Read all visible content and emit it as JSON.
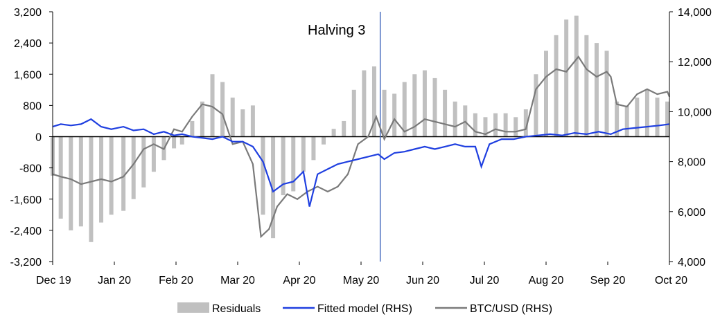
{
  "chart_data": {
    "type": "bar+line",
    "annotation": "Halving 3",
    "annotation_x": "2020-05-11",
    "x_categories": [
      "Dec 19",
      "Jan 20",
      "Feb 20",
      "Mar 20",
      "Apr 20",
      "May 20",
      "Jun 20",
      "Jul 20",
      "Aug 20",
      "Sep 20",
      "Oct 20"
    ],
    "x_range": [
      "2019-12-01",
      "2020-10-01"
    ],
    "y_left": {
      "range": [
        -3200,
        3200
      ],
      "ticks": [
        3200,
        2400,
        1600,
        800,
        0,
        -800,
        -1600,
        -2400,
        -3200
      ],
      "tick_labels": [
        "3,200",
        "2,400",
        "1,600",
        "800",
        "0",
        "-800",
        "-1,600",
        "-2,400",
        "-3,200"
      ]
    },
    "y_right": {
      "range": [
        4000,
        14000
      ],
      "ticks": [
        14000,
        12000,
        10000,
        8000,
        6000,
        4000
      ],
      "tick_labels": [
        "14,000",
        "12,000",
        "10,000",
        "8,000",
        "6,000",
        "4,000"
      ]
    },
    "legend": {
      "position": "bottom",
      "entries": [
        "Residuals",
        "Fitted model (RHS)",
        "BTC/USD (RHS)"
      ]
    },
    "colors": {
      "residuals": "#c0c0c0",
      "fitted": "#1f3fe0",
      "btc": "#7a7a7a",
      "halving_line": "#4a6fc0"
    },
    "series": [
      {
        "name": "Residuals",
        "axis": "left",
        "type": "bar",
        "points": [
          [
            "2019-12-01",
            -1000
          ],
          [
            "2019-12-05",
            -2100
          ],
          [
            "2019-12-10",
            -2400
          ],
          [
            "2019-12-15",
            -2300
          ],
          [
            "2019-12-20",
            -2700
          ],
          [
            "2019-12-25",
            -2200
          ],
          [
            "2019-12-30",
            -2000
          ],
          [
            "2020-01-05",
            -1900
          ],
          [
            "2020-01-10",
            -1600
          ],
          [
            "2020-01-15",
            -1300
          ],
          [
            "2020-01-20",
            -900
          ],
          [
            "2020-01-25",
            -600
          ],
          [
            "2020-01-30",
            -300
          ],
          [
            "2020-02-03",
            -200
          ],
          [
            "2020-02-08",
            400
          ],
          [
            "2020-02-13",
            900
          ],
          [
            "2020-02-18",
            1600
          ],
          [
            "2020-02-23",
            1400
          ],
          [
            "2020-02-28",
            1000
          ],
          [
            "2020-03-04",
            700
          ],
          [
            "2020-03-09",
            800
          ],
          [
            "2020-03-14",
            -2000
          ],
          [
            "2020-03-19",
            -2600
          ],
          [
            "2020-03-24",
            -1500
          ],
          [
            "2020-03-29",
            -1400
          ],
          [
            "2020-04-03",
            -900
          ],
          [
            "2020-04-08",
            -600
          ],
          [
            "2020-04-13",
            -200
          ],
          [
            "2020-04-18",
            200
          ],
          [
            "2020-04-23",
            400
          ],
          [
            "2020-04-28",
            1200
          ],
          [
            "2020-05-03",
            1700
          ],
          [
            "2020-05-08",
            1800
          ],
          [
            "2020-05-13",
            1200
          ],
          [
            "2020-05-18",
            1100
          ],
          [
            "2020-05-23",
            1400
          ],
          [
            "2020-05-28",
            1600
          ],
          [
            "2020-06-02",
            1700
          ],
          [
            "2020-06-07",
            1500
          ],
          [
            "2020-06-12",
            1200
          ],
          [
            "2020-06-17",
            900
          ],
          [
            "2020-06-22",
            800
          ],
          [
            "2020-06-27",
            600
          ],
          [
            "2020-07-02",
            500
          ],
          [
            "2020-07-07",
            600
          ],
          [
            "2020-07-12",
            600
          ],
          [
            "2020-07-17",
            500
          ],
          [
            "2020-07-22",
            700
          ],
          [
            "2020-07-27",
            1600
          ],
          [
            "2020-08-01",
            2200
          ],
          [
            "2020-08-06",
            2600
          ],
          [
            "2020-08-11",
            3000
          ],
          [
            "2020-08-16",
            3100
          ],
          [
            "2020-08-21",
            2600
          ],
          [
            "2020-08-26",
            2400
          ],
          [
            "2020-08-31",
            2200
          ],
          [
            "2020-09-05",
            900
          ],
          [
            "2020-09-10",
            800
          ],
          [
            "2020-09-15",
            1000
          ],
          [
            "2020-09-20",
            1200
          ],
          [
            "2020-09-25",
            1000
          ],
          [
            "2020-09-30",
            900
          ]
        ]
      },
      {
        "name": "Fitted model (RHS)",
        "axis": "right",
        "type": "line",
        "points": [
          [
            "2019-12-01",
            9400
          ],
          [
            "2019-12-05",
            9500
          ],
          [
            "2019-12-10",
            9450
          ],
          [
            "2019-12-15",
            9500
          ],
          [
            "2019-12-20",
            9700
          ],
          [
            "2019-12-25",
            9400
          ],
          [
            "2019-12-30",
            9300
          ],
          [
            "2020-01-05",
            9400
          ],
          [
            "2020-01-10",
            9250
          ],
          [
            "2020-01-15",
            9300
          ],
          [
            "2020-01-20",
            9100
          ],
          [
            "2020-01-25",
            9200
          ],
          [
            "2020-01-30",
            9050
          ],
          [
            "2020-02-03",
            9100
          ],
          [
            "2020-02-08",
            9000
          ],
          [
            "2020-02-13",
            8950
          ],
          [
            "2020-02-18",
            8900
          ],
          [
            "2020-02-23",
            9000
          ],
          [
            "2020-02-28",
            8800
          ],
          [
            "2020-03-04",
            8800
          ],
          [
            "2020-03-09",
            8600
          ],
          [
            "2020-03-14",
            8000
          ],
          [
            "2020-03-19",
            6800
          ],
          [
            "2020-03-24",
            7100
          ],
          [
            "2020-03-29",
            7200
          ],
          [
            "2020-04-03",
            7600
          ],
          [
            "2020-04-06",
            6200
          ],
          [
            "2020-04-10",
            7500
          ],
          [
            "2020-04-15",
            7700
          ],
          [
            "2020-04-20",
            7900
          ],
          [
            "2020-04-25",
            8000
          ],
          [
            "2020-04-30",
            8100
          ],
          [
            "2020-05-05",
            8200
          ],
          [
            "2020-05-10",
            8300
          ],
          [
            "2020-05-13",
            8100
          ],
          [
            "2020-05-18",
            8350
          ],
          [
            "2020-05-23",
            8400
          ],
          [
            "2020-05-28",
            8500
          ],
          [
            "2020-06-02",
            8600
          ],
          [
            "2020-06-07",
            8500
          ],
          [
            "2020-06-12",
            8600
          ],
          [
            "2020-06-17",
            8700
          ],
          [
            "2020-06-22",
            8600
          ],
          [
            "2020-06-27",
            8600
          ],
          [
            "2020-06-30",
            7800
          ],
          [
            "2020-07-04",
            8700
          ],
          [
            "2020-07-10",
            8900
          ],
          [
            "2020-07-16",
            8900
          ],
          [
            "2020-07-22",
            9000
          ],
          [
            "2020-07-28",
            9050
          ],
          [
            "2020-08-03",
            9100
          ],
          [
            "2020-08-09",
            9050
          ],
          [
            "2020-08-15",
            9150
          ],
          [
            "2020-08-21",
            9100
          ],
          [
            "2020-08-27",
            9200
          ],
          [
            "2020-09-02",
            9100
          ],
          [
            "2020-09-08",
            9300
          ],
          [
            "2020-09-14",
            9350
          ],
          [
            "2020-09-20",
            9400
          ],
          [
            "2020-09-26",
            9450
          ],
          [
            "2020-10-01",
            9500
          ]
        ]
      },
      {
        "name": "BTC/USD (RHS)",
        "axis": "right",
        "type": "line",
        "points": [
          [
            "2019-12-01",
            7500
          ],
          [
            "2019-12-05",
            7400
          ],
          [
            "2019-12-10",
            7300
          ],
          [
            "2019-12-15",
            7100
          ],
          [
            "2019-12-20",
            7200
          ],
          [
            "2019-12-25",
            7300
          ],
          [
            "2019-12-30",
            7200
          ],
          [
            "2020-01-05",
            7400
          ],
          [
            "2020-01-10",
            7900
          ],
          [
            "2020-01-15",
            8500
          ],
          [
            "2020-01-20",
            8700
          ],
          [
            "2020-01-25",
            8500
          ],
          [
            "2020-01-30",
            9300
          ],
          [
            "2020-02-03",
            9200
          ],
          [
            "2020-02-08",
            9800
          ],
          [
            "2020-02-13",
            10300
          ],
          [
            "2020-02-18",
            10200
          ],
          [
            "2020-02-23",
            9900
          ],
          [
            "2020-02-28",
            8700
          ],
          [
            "2020-03-04",
            8800
          ],
          [
            "2020-03-09",
            7900
          ],
          [
            "2020-03-13",
            5000
          ],
          [
            "2020-03-17",
            5300
          ],
          [
            "2020-03-21",
            6200
          ],
          [
            "2020-03-26",
            6700
          ],
          [
            "2020-03-31",
            6500
          ],
          [
            "2020-04-05",
            6800
          ],
          [
            "2020-04-10",
            7000
          ],
          [
            "2020-04-15",
            6800
          ],
          [
            "2020-04-20",
            7000
          ],
          [
            "2020-04-25",
            7500
          ],
          [
            "2020-04-30",
            8700
          ],
          [
            "2020-05-05",
            9000
          ],
          [
            "2020-05-09",
            9800
          ],
          [
            "2020-05-13",
            8900
          ],
          [
            "2020-05-18",
            9700
          ],
          [
            "2020-05-23",
            9200
          ],
          [
            "2020-05-28",
            9400
          ],
          [
            "2020-06-02",
            9700
          ],
          [
            "2020-06-07",
            9600
          ],
          [
            "2020-06-12",
            9500
          ],
          [
            "2020-06-17",
            9400
          ],
          [
            "2020-06-22",
            9600
          ],
          [
            "2020-06-27",
            9200
          ],
          [
            "2020-07-02",
            9100
          ],
          [
            "2020-07-07",
            9300
          ],
          [
            "2020-07-12",
            9200
          ],
          [
            "2020-07-17",
            9200
          ],
          [
            "2020-07-22",
            9300
          ],
          [
            "2020-07-27",
            10900
          ],
          [
            "2020-08-01",
            11400
          ],
          [
            "2020-08-06",
            11700
          ],
          [
            "2020-08-11",
            11600
          ],
          [
            "2020-08-17",
            12200
          ],
          [
            "2020-08-21",
            11700
          ],
          [
            "2020-08-26",
            11400
          ],
          [
            "2020-08-31",
            11600
          ],
          [
            "2020-09-02",
            11400
          ],
          [
            "2020-09-05",
            10300
          ],
          [
            "2020-09-10",
            10200
          ],
          [
            "2020-09-15",
            10700
          ],
          [
            "2020-09-20",
            10900
          ],
          [
            "2020-09-25",
            10700
          ],
          [
            "2020-09-30",
            10800
          ],
          [
            "2020-10-01",
            10600
          ]
        ]
      }
    ]
  }
}
